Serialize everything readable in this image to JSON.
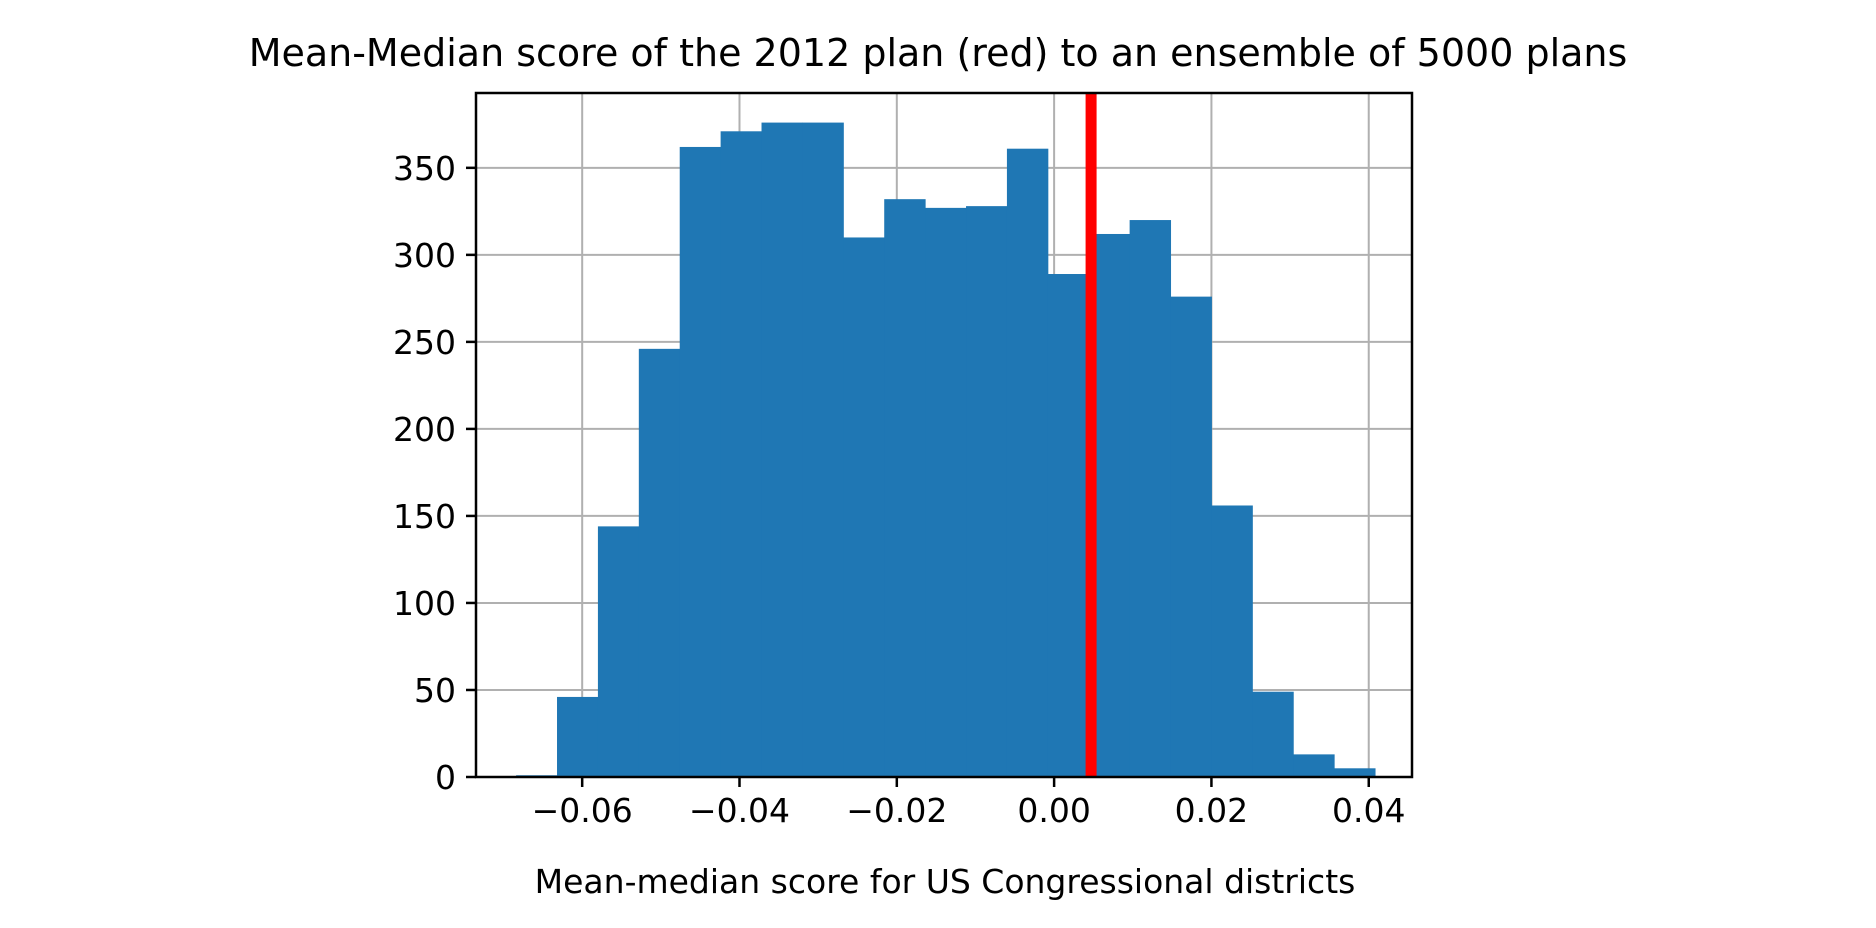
{
  "chart_data": {
    "type": "bar",
    "title": "Mean-Median score of the 2012 plan (red) to an ensemble of 5000 plans",
    "xlabel": "Mean-median score for US Congressional districts",
    "ylabel": "",
    "xlim": [
      -0.0735,
      0.0455
    ],
    "ylim": [
      0,
      393
    ],
    "grid": true,
    "x_ticks": [
      -0.06,
      -0.04,
      -0.02,
      0.0,
      0.02,
      0.04
    ],
    "x_tick_labels": [
      "−0.06",
      "−0.04",
      "−0.02",
      "0.00",
      "0.02",
      "0.04"
    ],
    "y_ticks": [
      0,
      50,
      100,
      150,
      200,
      250,
      300,
      350
    ],
    "y_tick_labels": [
      "0",
      "50",
      "100",
      "150",
      "200",
      "250",
      "300",
      "350"
    ],
    "bins": [
      {
        "x0": -0.0684,
        "x1": -0.0632,
        "value": 1
      },
      {
        "x0": -0.0632,
        "x1": -0.058,
        "value": 46
      },
      {
        "x0": -0.058,
        "x1": -0.0528,
        "value": 144
      },
      {
        "x0": -0.0528,
        "x1": -0.0476,
        "value": 246
      },
      {
        "x0": -0.0476,
        "x1": -0.0424,
        "value": 362
      },
      {
        "x0": -0.0424,
        "x1": -0.0372,
        "value": 371
      },
      {
        "x0": -0.0372,
        "x1": -0.032,
        "value": 376
      },
      {
        "x0": -0.032,
        "x1": -0.0268,
        "value": 376
      },
      {
        "x0": -0.0268,
        "x1": -0.0216,
        "value": 310
      },
      {
        "x0": -0.0216,
        "x1": -0.0164,
        "value": 332
      },
      {
        "x0": -0.0164,
        "x1": -0.0112,
        "value": 327
      },
      {
        "x0": -0.0112,
        "x1": -0.006,
        "value": 328
      },
      {
        "x0": -0.006,
        "x1": -0.0008,
        "value": 361
      },
      {
        "x0": -0.0008,
        "x1": 0.0044,
        "value": 289
      },
      {
        "x0": 0.0044,
        "x1": 0.0096,
        "value": 312
      },
      {
        "x0": 0.0096,
        "x1": 0.0148,
        "value": 320
      },
      {
        "x0": 0.0148,
        "x1": 0.02,
        "value": 276
      },
      {
        "x0": 0.02,
        "x1": 0.0252,
        "value": 156
      },
      {
        "x0": 0.0252,
        "x1": 0.0304,
        "value": 49
      },
      {
        "x0": 0.0304,
        "x1": 0.0356,
        "value": 13
      },
      {
        "x0": 0.0356,
        "x1": 0.0408,
        "value": 5
      }
    ],
    "reference_line": {
      "x": 0.0047,
      "color": "#ff0000"
    },
    "bar_color": "#1f77b4"
  }
}
